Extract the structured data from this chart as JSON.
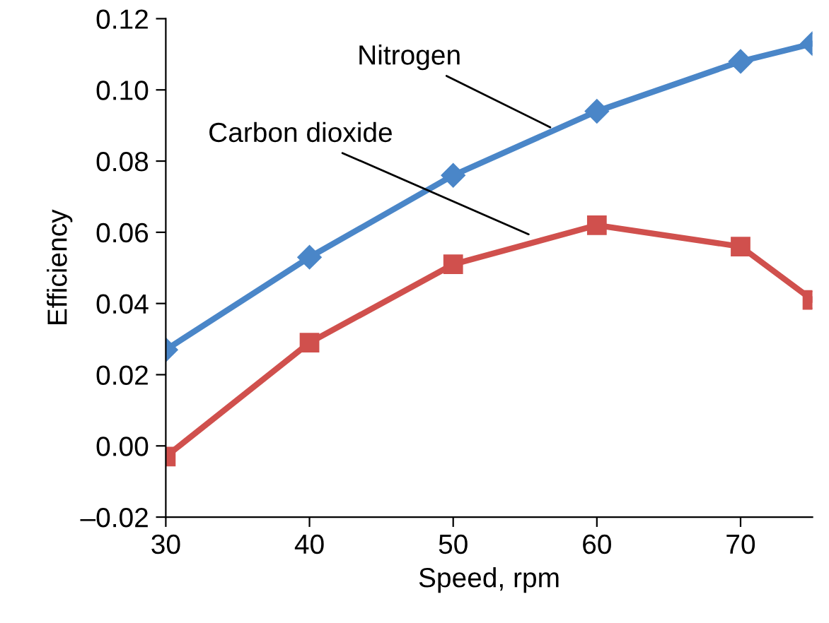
{
  "chart_data": {
    "type": "line",
    "xlabel": "Speed, rpm",
    "ylabel": "Efficiency",
    "x": [
      30,
      40,
      50,
      60,
      70,
      75
    ],
    "series": [
      {
        "color": "#4a86c8",
        "values": [
          0.027,
          0.053,
          0.076,
          0.094,
          0.108,
          0.113
        ]
      },
      {
        "color": "#d0504d",
        "values": [
          -0.003,
          0.029,
          0.051,
          0.062,
          0.056,
          0.041
        ],
        "marker": "square"
      }
    ],
    "marker": "diamond",
    "line_style": "solid",
    "grid": false,
    "legend": false,
    "xlim": [
      30,
      75
    ],
    "xticks": [
      30,
      40,
      50,
      60,
      70
    ],
    "ylim": [
      -0.02,
      0.12
    ],
    "yticks": [
      {
        "value": -0.02,
        "label": "–0.02"
      },
      {
        "value": 0,
        "label": "0.00"
      },
      {
        "value": 0.02,
        "label": "0.02"
      },
      {
        "value": 0.04,
        "label": "0.04"
      },
      {
        "value": 0.06,
        "label": "0.06"
      },
      {
        "value": 0.08,
        "label": "0.08"
      },
      {
        "value": 0.1,
        "label": "0.10"
      },
      {
        "value": 0.12,
        "label": "0.12"
      }
    ],
    "annotations": [
      {
        "text": "Nitrogen",
        "x": 57,
        "y": 0.089
      },
      {
        "text": "Carbon dioxide",
        "x": 55.5,
        "y": 0.059
      }
    ]
  }
}
